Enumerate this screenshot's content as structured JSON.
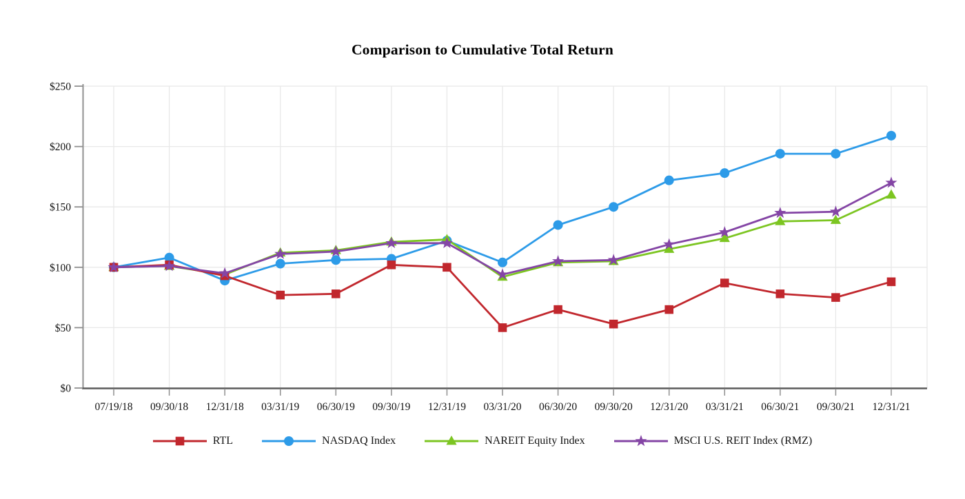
{
  "chart_data": {
    "type": "line",
    "title": "Comparison to Cumulative Total Return",
    "categories": [
      "07/19/18",
      "09/30/18",
      "12/31/18",
      "03/31/19",
      "06/30/19",
      "09/30/19",
      "12/31/19",
      "03/31/20",
      "06/30/20",
      "09/30/20",
      "12/31/20",
      "03/31/21",
      "06/30/21",
      "09/30/21",
      "12/31/21"
    ],
    "y_ticks": [
      "$0",
      "$50",
      "$100",
      "$150",
      "$200",
      "$250"
    ],
    "ylim": [
      0,
      250
    ],
    "y_tick_step": 50,
    "grid": true,
    "legend_position": "bottom",
    "series": [
      {
        "name": "RTL",
        "marker": "square",
        "color": "#C1272D",
        "values": [
          100,
          102,
          93,
          77,
          78,
          102,
          100,
          50,
          65,
          53,
          65,
          87,
          78,
          75,
          88
        ]
      },
      {
        "name": "NASDAQ Index",
        "marker": "circle",
        "color": "#2D9BE8",
        "values": [
          100,
          108,
          89,
          103,
          106,
          107,
          122,
          104,
          135,
          150,
          172,
          178,
          194,
          194,
          209
        ]
      },
      {
        "name": "NAREIT Equity Index",
        "marker": "triangle",
        "color": "#7CC521",
        "values": [
          100,
          101,
          94,
          112,
          114,
          121,
          123,
          92,
          104,
          105,
          115,
          124,
          138,
          139,
          160
        ]
      },
      {
        "name": "MSCI U.S. REIT Index (RMZ)",
        "marker": "star",
        "color": "#8445A5",
        "values": [
          100,
          101,
          95,
          111,
          113,
          120,
          120,
          94,
          105,
          106,
          119,
          129,
          145,
          146,
          170
        ]
      }
    ]
  },
  "style": {
    "grid_color": "#E8E8E8",
    "y_axis_color": "#8F8F8F",
    "x_axis_color": "#5A5A5A",
    "tick_color": "#8F8F8F"
  }
}
